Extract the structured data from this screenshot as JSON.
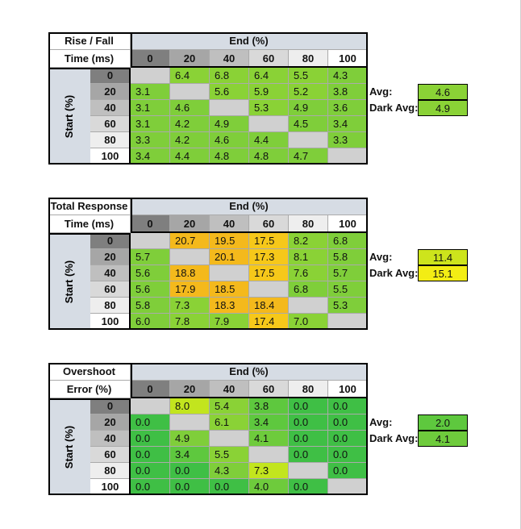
{
  "chart_data": [
    {
      "type": "table",
      "title_lines": [
        "Rise / Fall",
        "Time (ms)"
      ],
      "col_header": "End (%)",
      "row_header": "Start (%)",
      "columns": [
        "0",
        "20",
        "40",
        "60",
        "80",
        "100"
      ],
      "rows": [
        "0",
        "20",
        "40",
        "60",
        "80",
        "100"
      ],
      "values": [
        [
          null,
          6.4,
          6.8,
          6.4,
          5.5,
          4.3
        ],
        [
          3.1,
          null,
          5.6,
          5.9,
          5.2,
          3.8
        ],
        [
          3.1,
          4.6,
          null,
          5.3,
          4.9,
          3.6
        ],
        [
          3.1,
          4.2,
          4.9,
          null,
          4.5,
          3.4
        ],
        [
          3.3,
          4.2,
          4.6,
          4.4,
          null,
          3.3
        ],
        [
          3.4,
          4.4,
          4.8,
          4.8,
          4.7,
          null
        ]
      ],
      "colors": [
        [
          null,
          "#8ad236",
          "#8ad236",
          "#8ad236",
          "#8ad236",
          "#7fce3a"
        ],
        [
          "#7fce3a",
          null,
          "#8ad236",
          "#8ad236",
          "#8ad236",
          "#7fce3a"
        ],
        [
          "#7fce3a",
          "#7fce3a",
          null,
          "#8ad236",
          "#7fce3a",
          "#7fce3a"
        ],
        [
          "#7fce3a",
          "#7fce3a",
          "#7fce3a",
          null,
          "#7fce3a",
          "#7fce3a"
        ],
        [
          "#7fce3a",
          "#7fce3a",
          "#7fce3a",
          "#7fce3a",
          null,
          "#7fce3a"
        ],
        [
          "#7fce3a",
          "#7fce3a",
          "#7fce3a",
          "#7fce3a",
          "#7fce3a",
          null
        ]
      ],
      "avg_label": "Avg:",
      "avg": "4.6",
      "avg_color": "#8ad236",
      "dark_avg_label": "Dark Avg:",
      "dark_avg": "4.9",
      "dark_avg_color": "#8ad236"
    },
    {
      "type": "table",
      "title_lines": [
        "Total Response",
        "Time (ms)"
      ],
      "col_header": "End (%)",
      "row_header": "Start (%)",
      "columns": [
        "0",
        "20",
        "40",
        "60",
        "80",
        "100"
      ],
      "rows": [
        "0",
        "20",
        "40",
        "60",
        "80",
        "100"
      ],
      "values": [
        [
          null,
          20.7,
          19.5,
          17.5,
          8.2,
          6.8
        ],
        [
          5.7,
          null,
          20.1,
          17.3,
          8.1,
          5.8
        ],
        [
          5.6,
          18.8,
          null,
          17.5,
          7.6,
          5.7
        ],
        [
          5.6,
          17.9,
          18.5,
          null,
          6.8,
          5.5
        ],
        [
          5.8,
          7.3,
          18.3,
          18.4,
          null,
          5.3
        ],
        [
          6.0,
          7.8,
          7.9,
          17.4,
          7.0,
          null
        ]
      ],
      "colors": [
        [
          null,
          "#f4b91c",
          "#f4b91c",
          "#f6c81a",
          "#8ad236",
          "#7fce3a"
        ],
        [
          "#7fce3a",
          null,
          "#f4b91c",
          "#f6c81a",
          "#8ad236",
          "#7fce3a"
        ],
        [
          "#7fce3a",
          "#f4b91c",
          null,
          "#f6c81a",
          "#8ad236",
          "#7fce3a"
        ],
        [
          "#7fce3a",
          "#f4b91c",
          "#f4b91c",
          null,
          "#7fce3a",
          "#7fce3a"
        ],
        [
          "#7fce3a",
          "#8ad236",
          "#f4b91c",
          "#f4b91c",
          null,
          "#7fce3a"
        ],
        [
          "#7fce3a",
          "#8ad236",
          "#8ad236",
          "#f6c81a",
          "#8ad236",
          null
        ]
      ],
      "avg_label": "Avg:",
      "avg": "11.4",
      "avg_color": "#cde41c",
      "dark_avg_label": "Dark Avg:",
      "dark_avg": "15.1",
      "dark_avg_color": "#f3ed14"
    },
    {
      "type": "table",
      "title_lines": [
        "Overshoot",
        "Error (%)"
      ],
      "col_header": "End (%)",
      "row_header": "Start (%)",
      "columns": [
        "0",
        "20",
        "40",
        "60",
        "80",
        "100"
      ],
      "rows": [
        "0",
        "20",
        "40",
        "60",
        "80",
        "100"
      ],
      "values": [
        [
          null,
          8.0,
          5.4,
          3.8,
          0.0,
          0.0
        ],
        [
          0.0,
          null,
          6.1,
          3.4,
          0.0,
          0.0
        ],
        [
          0.0,
          4.9,
          null,
          4.1,
          0.0,
          0.0
        ],
        [
          0.0,
          3.4,
          5.5,
          null,
          0.0,
          0.0
        ],
        [
          0.0,
          0.0,
          4.3,
          7.3,
          null,
          0.0
        ],
        [
          0.0,
          0.0,
          0.0,
          4.0,
          0.0,
          null
        ]
      ],
      "colors": [
        [
          null,
          "#c2e51e",
          "#8ad236",
          "#5ec83e",
          "#3fbf45",
          "#3fbf45"
        ],
        [
          "#3fbf45",
          null,
          "#8ad236",
          "#5ec83e",
          "#3fbf45",
          "#3fbf45"
        ],
        [
          "#3fbf45",
          "#7fce3a",
          null,
          "#6ecb3c",
          "#3fbf45",
          "#3fbf45"
        ],
        [
          "#3fbf45",
          "#5ec83e",
          "#8ad236",
          null,
          "#3fbf45",
          "#3fbf45"
        ],
        [
          "#3fbf45",
          "#3fbf45",
          "#7fce3a",
          "#c2e51e",
          null,
          "#3fbf45"
        ],
        [
          "#3fbf45",
          "#3fbf45",
          "#3fbf45",
          "#6ecb3c",
          "#3fbf45",
          null
        ]
      ],
      "avg_label": "Avg:",
      "avg": "2.0",
      "avg_color": "#5ec83e",
      "dark_avg_label": "Dark Avg:",
      "dark_avg": "4.1",
      "dark_avg_color": "#6ecb3c"
    }
  ],
  "header_colors": [
    "#7f7f7f",
    "#a6a6a6",
    "#bfbfbf",
    "#d9d9d9",
    "#eeeeee",
    "#ffffff"
  ],
  "empty_color": "#d0d0d0",
  "header_band_color": "#d6dce4"
}
